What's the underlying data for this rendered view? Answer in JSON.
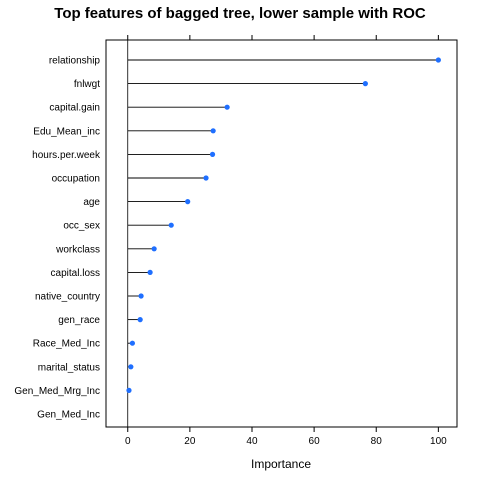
{
  "chart_data": {
    "type": "dot",
    "title": "Top features of bagged tree, lower sample with ROC",
    "xlabel": "Importance",
    "ylabel": "",
    "xlim": [
      -7,
      106
    ],
    "xticks": [
      0,
      20,
      40,
      60,
      80,
      100
    ],
    "xtick_labels": [
      "0",
      "20",
      "40",
      "60",
      "80",
      "100"
    ],
    "grid": false,
    "categories": [
      "relationship",
      "fnlwgt",
      "capital.gain",
      "Edu_Mean_inc",
      "hours.per.week",
      "occupation",
      "age",
      "occ_sex",
      "workclass",
      "capital.loss",
      "native_country",
      "gen_race",
      "Race_Med_Inc",
      "marital_status",
      "Gen_Med_Mrg_Inc",
      "Gen_Med_Inc"
    ],
    "values": [
      100,
      76.5,
      32,
      27.5,
      27.3,
      25.2,
      19.3,
      14,
      8.5,
      7.2,
      4.3,
      4,
      1.5,
      1,
      0.4,
      0
    ],
    "colors": {
      "point": "#1f6fff",
      "line": "#000000",
      "frame": "#000000"
    }
  }
}
